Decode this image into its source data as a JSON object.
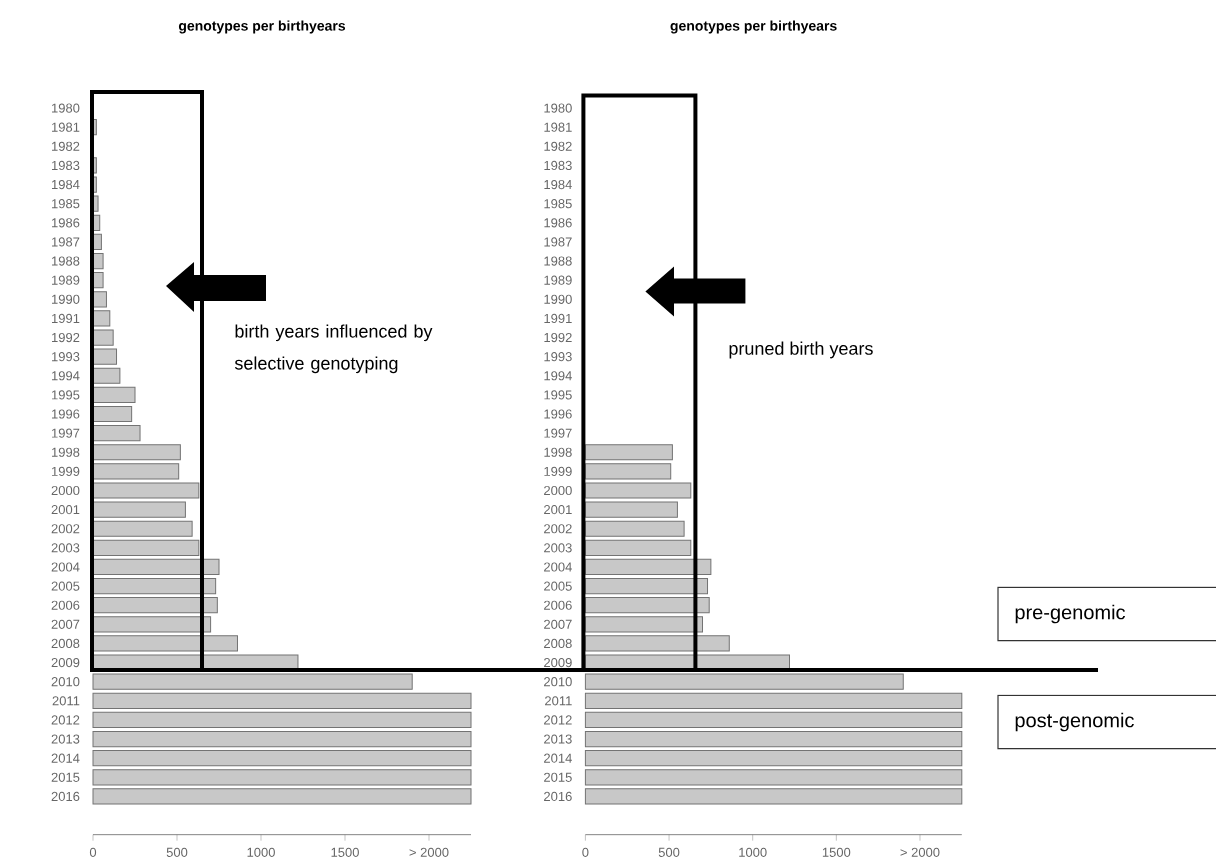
{
  "chart_data": [
    {
      "type": "bar",
      "orientation": "horizontal",
      "title": "genotypes per birthyears",
      "categories": [
        "1980",
        "1981",
        "1982",
        "1983",
        "1984",
        "1985",
        "1986",
        "1987",
        "1988",
        "1989",
        "1990",
        "1991",
        "1992",
        "1993",
        "1994",
        "1995",
        "1996",
        "1997",
        "1998",
        "1999",
        "2000",
        "2001",
        "2002",
        "2003",
        "2004",
        "2005",
        "2006",
        "2007",
        "2008",
        "2009",
        "2010",
        "2011",
        "2012",
        "2013",
        "2014",
        "2015",
        "2016"
      ],
      "values": [
        null,
        20,
        null,
        20,
        20,
        30,
        40,
        50,
        60,
        60,
        80,
        100,
        120,
        140,
        160,
        250,
        230,
        280,
        520,
        510,
        630,
        550,
        590,
        630,
        750,
        730,
        740,
        700,
        860,
        1220,
        1900,
        2250,
        2250,
        2250,
        2250,
        2250,
        2250
      ],
      "color": "#c8c8c8",
      "xlim": [
        0,
        2250
      ],
      "xticks": [
        0,
        500,
        1000,
        1500,
        {
          "value": 2000,
          "label": "> 2000"
        }
      ],
      "annotations": [
        "birth years influenced by selective genotyping"
      ]
    },
    {
      "type": "bar",
      "orientation": "horizontal",
      "title": "genotypes per birthyears",
      "categories": [
        "1980",
        "1981",
        "1982",
        "1983",
        "1984",
        "1985",
        "1986",
        "1987",
        "1988",
        "1989",
        "1990",
        "1991",
        "1992",
        "1993",
        "1994",
        "1995",
        "1996",
        "1997",
        "1998",
        "1999",
        "2000",
        "2001",
        "2002",
        "2003",
        "2004",
        "2005",
        "2006",
        "2007",
        "2008",
        "2009",
        "2010",
        "2011",
        "2012",
        "2013",
        "2014",
        "2015",
        "2016"
      ],
      "values": [
        null,
        null,
        null,
        null,
        null,
        null,
        null,
        null,
        null,
        null,
        null,
        null,
        null,
        null,
        null,
        null,
        null,
        null,
        520,
        510,
        630,
        550,
        590,
        630,
        750,
        730,
        740,
        700,
        860,
        1220,
        1900,
        2250,
        2250,
        2250,
        2250,
        2250,
        2250
      ],
      "color": "#c8c8c8",
      "xlim": [
        0,
        2250
      ],
      "xticks": [
        0,
        500,
        1000,
        1500,
        {
          "value": 2000,
          "label": "> 2000"
        }
      ],
      "annotations": [
        "pruned birth years",
        "pre-genomic",
        "post-genomic"
      ]
    }
  ]
}
